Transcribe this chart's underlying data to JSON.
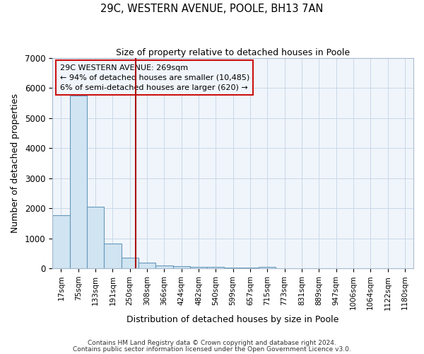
{
  "title1": "29C, WESTERN AVENUE, POOLE, BH13 7AN",
  "title2": "Size of property relative to detached houses in Poole",
  "xlabel": "Distribution of detached houses by size in Poole",
  "ylabel": "Number of detached properties",
  "bar_labels": [
    "17sqm",
    "75sqm",
    "133sqm",
    "191sqm",
    "250sqm",
    "308sqm",
    "366sqm",
    "424sqm",
    "482sqm",
    "540sqm",
    "599sqm",
    "657sqm",
    "715sqm",
    "773sqm",
    "831sqm",
    "889sqm",
    "947sqm",
    "1006sqm",
    "1064sqm",
    "1122sqm",
    "1180sqm"
  ],
  "bar_values": [
    1760,
    5750,
    2050,
    820,
    350,
    200,
    105,
    80,
    60,
    50,
    25,
    18,
    60,
    0,
    0,
    0,
    0,
    0,
    0,
    0,
    0
  ],
  "bar_color": "#d0e4f2",
  "bar_edge_color": "#6699bb",
  "vline_color": "#aa1111",
  "annotation_text1": "29C WESTERN AVENUE: 269sqm",
  "annotation_text2": "← 94% of detached houses are smaller (10,485)",
  "annotation_text3": "6% of semi-detached houses are larger (620) →",
  "annotation_box_color": "#cc1111",
  "ylim": [
    0,
    7000
  ],
  "yticks": [
    0,
    1000,
    2000,
    3000,
    4000,
    5000,
    6000,
    7000
  ],
  "grid_color": "#c8d8e8",
  "bg_color": "#ffffff",
  "plot_bg_color": "#f0f5fb",
  "footnote1": "Contains HM Land Registry data © Crown copyright and database right 2024.",
  "footnote2": "Contains public sector information licensed under the Open Government Licence v3.0."
}
